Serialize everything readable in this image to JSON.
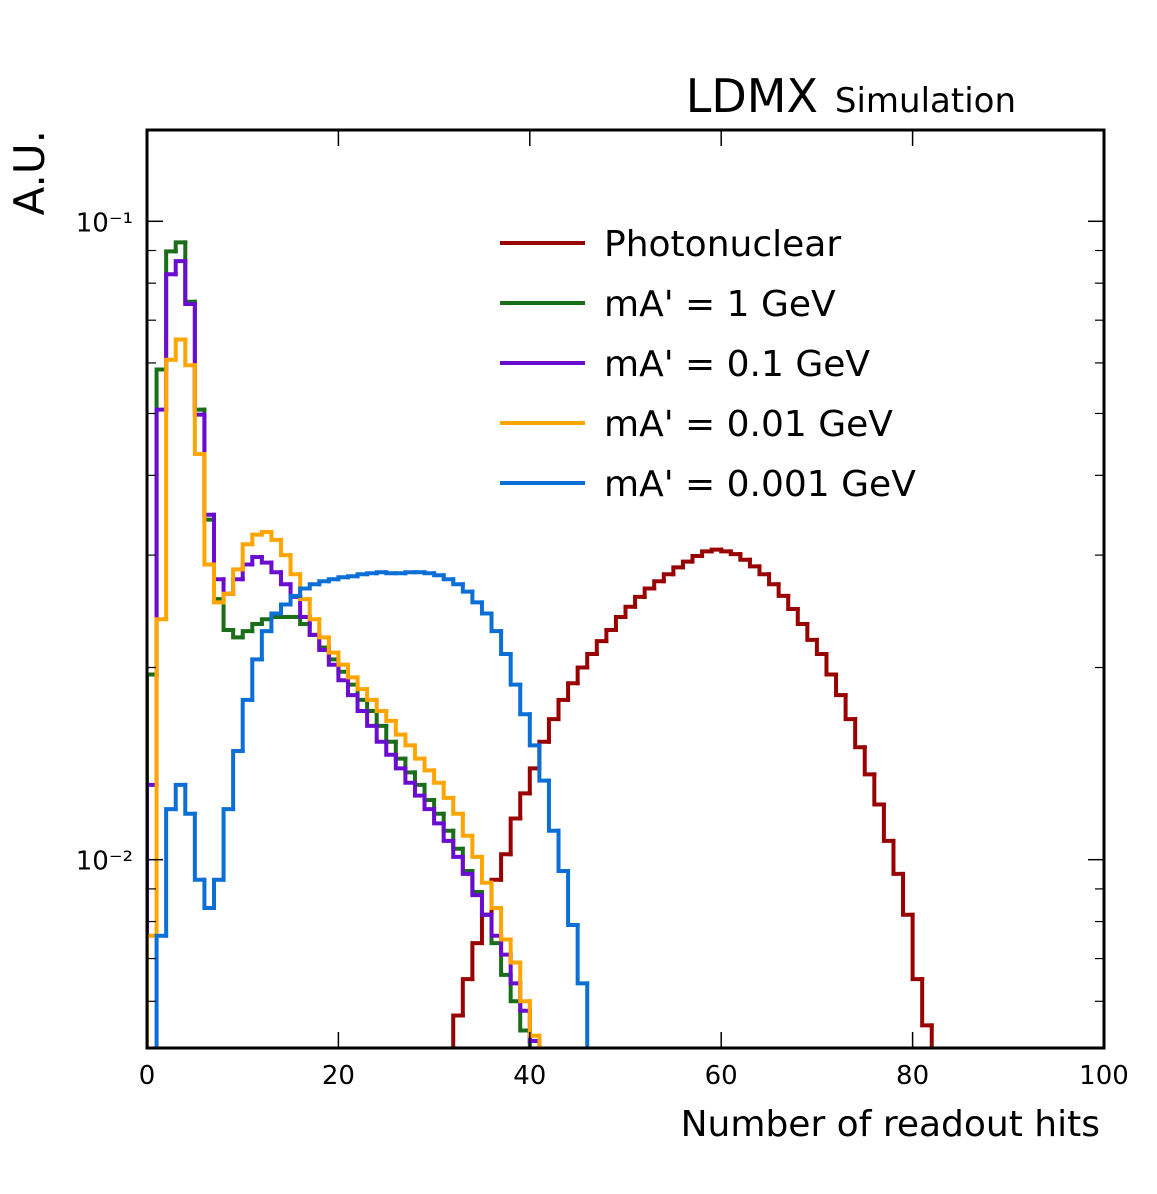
{
  "chart_data": {
    "type": "step-histogram",
    "title": "LDMX",
    "subtitle": "Simulation",
    "xlabel": "Number of readout hits",
    "ylabel": "A.U.",
    "log_y": true,
    "xlim": [
      0,
      100
    ],
    "xticks": [
      0,
      20,
      40,
      60,
      80,
      100
    ],
    "ylim": [
      0.00507,
      0.139
    ],
    "yticks": [
      {
        "value": 0.01,
        "label": "10⁻²"
      },
      {
        "value": 0.1,
        "label": "10⁻¹"
      }
    ],
    "yminorticks": [
      0.006,
      0.007,
      0.008,
      0.009,
      0.02,
      0.03,
      0.04,
      0.05,
      0.06,
      0.07,
      0.08,
      0.09
    ],
    "legend": "upper right",
    "bins": [
      0,
      1,
      2,
      3,
      4,
      5,
      6,
      7,
      8,
      9,
      10,
      11,
      12,
      13,
      14,
      15,
      16,
      17,
      18,
      19,
      20,
      21,
      22,
      23,
      24,
      25,
      26,
      27,
      28,
      29,
      30,
      31,
      32,
      33,
      34,
      35,
      36,
      37,
      38,
      39,
      40,
      41,
      42,
      43,
      44,
      45,
      46,
      47,
      48,
      49,
      50,
      51,
      52,
      53,
      54,
      55,
      56,
      57,
      58,
      59,
      60,
      61,
      62,
      63,
      64,
      65,
      66,
      67,
      68,
      69,
      70,
      71,
      72,
      73,
      74,
      75,
      76,
      77,
      78,
      79,
      80,
      81,
      82,
      83,
      84,
      85,
      86,
      87,
      88,
      89,
      90,
      91,
      92,
      93,
      94,
      95,
      96,
      97,
      98,
      99,
      100
    ],
    "series": [
      {
        "name": "Photonuclear",
        "color": "#990000",
        "values": [
          0,
          0,
          0,
          0,
          0,
          0,
          0,
          0,
          0,
          0,
          0,
          0,
          0,
          0,
          0,
          0,
          0,
          0,
          0,
          0,
          0,
          0,
          0,
          0,
          0,
          0,
          0,
          0,
          0,
          0,
          0,
          0,
          0.0057,
          0.0065,
          0.0074,
          0.0082,
          0.0093,
          0.0102,
          0.0116,
          0.0127,
          0.0139,
          0.0153,
          0.0166,
          0.0178,
          0.0189,
          0.02,
          0.021,
          0.022,
          0.0229,
          0.024,
          0.0249,
          0.0258,
          0.0266,
          0.0273,
          0.028,
          0.0287,
          0.0293,
          0.0299,
          0.0304,
          0.0306,
          0.0304,
          0.0301,
          0.0295,
          0.0288,
          0.028,
          0.027,
          0.0259,
          0.0247,
          0.0234,
          0.0221,
          0.021,
          0.0195,
          0.0181,
          0.0166,
          0.015,
          0.0136,
          0.0122,
          0.0107,
          0.0095,
          0.0082,
          0.0065,
          0.0055,
          0,
          0,
          0,
          0,
          0,
          0,
          0,
          0,
          0,
          0,
          0,
          0,
          0,
          0,
          0,
          0,
          0,
          0
        ]
      },
      {
        "name": "mA' = 1 GeV",
        "color": "#1a6e1a",
        "values": [
          0.0195,
          0.0586,
          0.0897,
          0.0927,
          0.0748,
          0.0507,
          0.0341,
          0.0256,
          0.0229,
          0.0223,
          0.0228,
          0.0234,
          0.0238,
          0.024,
          0.024,
          0.024,
          0.0234,
          0.0225,
          0.0215,
          0.0206,
          0.0197,
          0.0188,
          0.0178,
          0.0171,
          0.0162,
          0.0153,
          0.0144,
          0.0137,
          0.0131,
          0.0124,
          0.0118,
          0.0111,
          0.0104,
          0.0096,
          0.0089,
          0.0082,
          0.0074,
          0.0066,
          0.006,
          0.0054,
          0,
          0,
          0,
          0,
          0,
          0,
          0,
          0,
          0,
          0,
          0,
          0,
          0,
          0,
          0,
          0,
          0,
          0,
          0,
          0,
          0,
          0,
          0,
          0,
          0,
          0,
          0,
          0,
          0,
          0,
          0,
          0,
          0,
          0,
          0,
          0,
          0,
          0,
          0,
          0,
          0,
          0,
          0,
          0,
          0,
          0,
          0,
          0,
          0,
          0,
          0,
          0,
          0,
          0,
          0,
          0,
          0,
          0,
          0,
          0
        ]
      },
      {
        "name": "mA' = 0.1 GeV",
        "color": "#6a0dd0",
        "values": [
          0.0131,
          0.0507,
          0.0826,
          0.0866,
          0.0742,
          0.0498,
          0.0347,
          0.0275,
          0.0261,
          0.0275,
          0.029,
          0.0298,
          0.0292,
          0.0282,
          0.027,
          0.0258,
          0.024,
          0.0225,
          0.0213,
          0.0202,
          0.0191,
          0.0181,
          0.0171,
          0.0162,
          0.0153,
          0.0146,
          0.0139,
          0.0132,
          0.0126,
          0.012,
          0.0114,
          0.0107,
          0.0101,
          0.0095,
          0.0088,
          0.0082,
          0.0076,
          0.0071,
          0.0064,
          0.0058,
          0.0052,
          0,
          0,
          0,
          0,
          0,
          0,
          0,
          0,
          0,
          0,
          0,
          0,
          0,
          0,
          0,
          0,
          0,
          0,
          0,
          0,
          0,
          0,
          0,
          0,
          0,
          0,
          0,
          0,
          0,
          0,
          0,
          0,
          0,
          0,
          0,
          0,
          0,
          0,
          0,
          0,
          0,
          0,
          0,
          0,
          0,
          0,
          0,
          0,
          0,
          0,
          0,
          0,
          0,
          0,
          0,
          0,
          0,
          0,
          0
        ]
      },
      {
        "name": "mA' = 0.01 GeV",
        "color": "#ffa500",
        "values": [
          0.0076,
          0.0238,
          0.0607,
          0.0653,
          0.0595,
          0.0432,
          0.029,
          0.0253,
          0.0261,
          0.0285,
          0.0312,
          0.0323,
          0.0326,
          0.0317,
          0.03,
          0.028,
          0.0256,
          0.0238,
          0.0223,
          0.0211,
          0.0202,
          0.0193,
          0.0185,
          0.0178,
          0.0171,
          0.0165,
          0.0157,
          0.0151,
          0.0144,
          0.0138,
          0.0132,
          0.0125,
          0.0118,
          0.0109,
          0.0101,
          0.0092,
          0.0084,
          0.0075,
          0.0069,
          0.006,
          0.0053,
          0,
          0,
          0,
          0,
          0,
          0,
          0,
          0,
          0,
          0,
          0,
          0,
          0,
          0,
          0,
          0,
          0,
          0,
          0,
          0,
          0,
          0,
          0,
          0,
          0,
          0,
          0,
          0,
          0,
          0,
          0,
          0,
          0,
          0,
          0,
          0,
          0,
          0,
          0,
          0,
          0,
          0,
          0,
          0,
          0,
          0,
          0,
          0,
          0,
          0,
          0,
          0,
          0,
          0,
          0,
          0,
          0,
          0,
          0
        ]
      },
      {
        "name": "mA' = 0.001 GeV",
        "color": "#0b6fd6",
        "values": [
          0,
          0.0076,
          0.012,
          0.0131,
          0.0118,
          0.0093,
          0.0084,
          0.0093,
          0.012,
          0.0148,
          0.0178,
          0.0206,
          0.0228,
          0.0243,
          0.0251,
          0.0259,
          0.0266,
          0.027,
          0.0273,
          0.0275,
          0.0277,
          0.0278,
          0.028,
          0.0281,
          0.0282,
          0.0281,
          0.0281,
          0.0282,
          0.0282,
          0.0281,
          0.0279,
          0.0275,
          0.027,
          0.0263,
          0.0253,
          0.0243,
          0.0228,
          0.021,
          0.0188,
          0.0169,
          0.0151,
          0.0133,
          0.0111,
          0.0096,
          0.0079,
          0.0064,
          0,
          0,
          0,
          0,
          0,
          0,
          0,
          0,
          0,
          0,
          0,
          0,
          0,
          0,
          0,
          0,
          0,
          0,
          0,
          0,
          0,
          0,
          0,
          0,
          0,
          0,
          0,
          0,
          0,
          0,
          0,
          0,
          0,
          0,
          0,
          0,
          0,
          0,
          0,
          0,
          0,
          0,
          0,
          0,
          0,
          0,
          0,
          0,
          0,
          0,
          0,
          0,
          0,
          0
        ]
      }
    ]
  }
}
